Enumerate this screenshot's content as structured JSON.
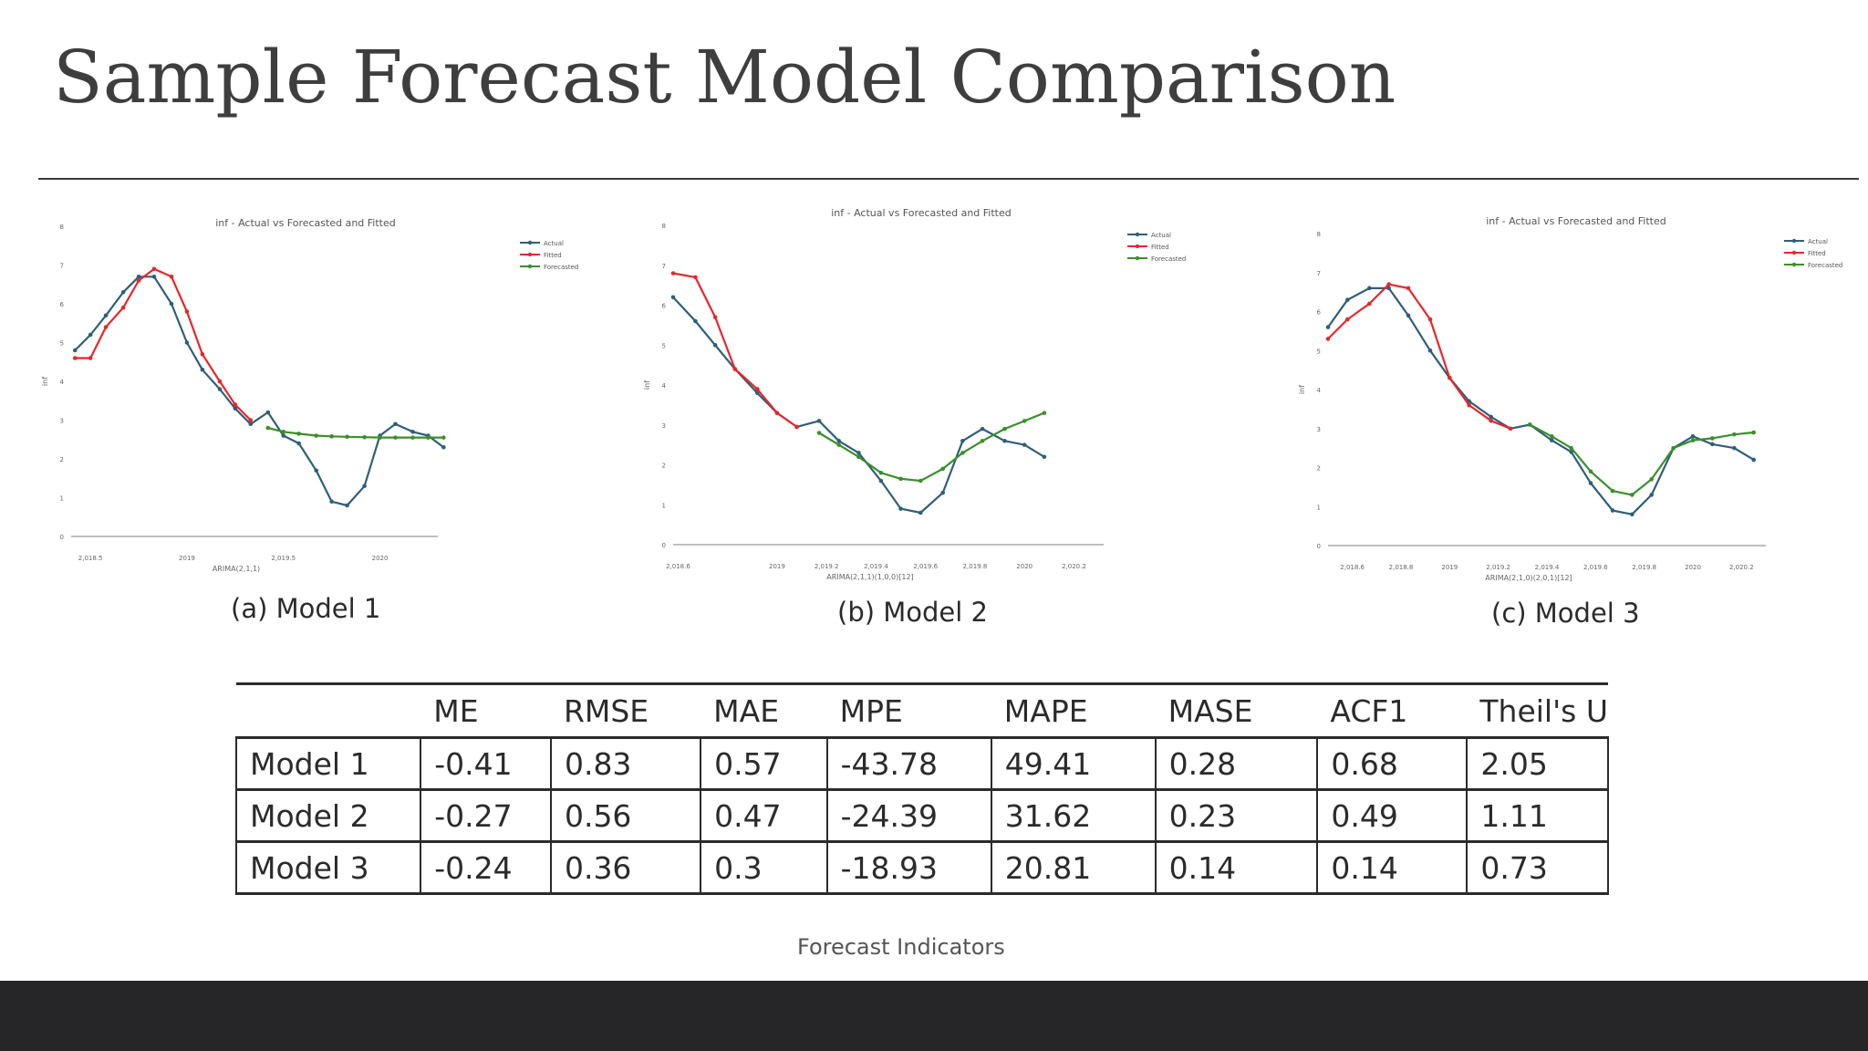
{
  "slide": {
    "title": "Sample Forecast Model Comparison",
    "table_caption": "Forecast Indicators"
  },
  "colors": {
    "actual": "#2e5f7a",
    "fitted": "#e8262b",
    "forecasted": "#3a8f2a",
    "footer": "#262628"
  },
  "chart_data": [
    {
      "type": "line",
      "title": "inf - Actual vs Forecasted and Fitted",
      "caption": "(a) Model 1",
      "xlabel": "ARIMA(2,1,1)",
      "ylabel": "inf",
      "x_ticks": [
        {
          "x": 2018.5,
          "label": "2,018.5"
        },
        {
          "x": 2019.0,
          "label": "2019"
        },
        {
          "x": 2019.5,
          "label": "2,019.5"
        },
        {
          "x": 2020.0,
          "label": "2020"
        }
      ],
      "y_ticks": [
        0,
        1,
        2,
        3,
        4,
        5,
        6,
        7,
        8
      ],
      "xlim": [
        2018.4,
        2020.3
      ],
      "ylim": [
        0,
        8
      ],
      "grid": false,
      "legend": "top-right",
      "series": [
        {
          "name": "Actual",
          "colorKey": "actual",
          "points": [
            [
              2018.42,
              4.8
            ],
            [
              2018.5,
              5.2
            ],
            [
              2018.58,
              5.7
            ],
            [
              2018.67,
              6.3
            ],
            [
              2018.75,
              6.7
            ],
            [
              2018.83,
              6.7
            ],
            [
              2018.92,
              6.0
            ],
            [
              2019.0,
              5.0
            ],
            [
              2019.08,
              4.3
            ],
            [
              2019.17,
              3.8
            ],
            [
              2019.25,
              3.3
            ],
            [
              2019.33,
              2.9
            ],
            [
              2019.42,
              3.2
            ],
            [
              2019.5,
              2.6
            ],
            [
              2019.58,
              2.4
            ],
            [
              2019.67,
              1.7
            ],
            [
              2019.75,
              0.9
            ],
            [
              2019.83,
              0.8
            ],
            [
              2019.92,
              1.3
            ],
            [
              2020.0,
              2.6
            ],
            [
              2020.08,
              2.9
            ],
            [
              2020.17,
              2.7
            ],
            [
              2020.25,
              2.6
            ],
            [
              2020.33,
              2.3
            ]
          ]
        },
        {
          "name": "Fitted",
          "colorKey": "fitted",
          "points": [
            [
              2018.42,
              4.6
            ],
            [
              2018.5,
              4.6
            ],
            [
              2018.58,
              5.4
            ],
            [
              2018.67,
              5.9
            ],
            [
              2018.75,
              6.6
            ],
            [
              2018.83,
              6.9
            ],
            [
              2018.92,
              6.7
            ],
            [
              2019.0,
              5.8
            ],
            [
              2019.08,
              4.7
            ],
            [
              2019.17,
              4.0
            ],
            [
              2019.25,
              3.4
            ],
            [
              2019.33,
              3.0
            ]
          ]
        },
        {
          "name": "Forecasted",
          "colorKey": "forecasted",
          "points": [
            [
              2019.42,
              2.8
            ],
            [
              2019.5,
              2.7
            ],
            [
              2019.58,
              2.65
            ],
            [
              2019.67,
              2.6
            ],
            [
              2019.75,
              2.58
            ],
            [
              2019.83,
              2.57
            ],
            [
              2019.92,
              2.56
            ],
            [
              2020.0,
              2.55
            ],
            [
              2020.08,
              2.55
            ],
            [
              2020.17,
              2.55
            ],
            [
              2020.25,
              2.55
            ],
            [
              2020.33,
              2.55
            ]
          ]
        }
      ]
    },
    {
      "type": "line",
      "title": "inf - Actual vs Forecasted and Fitted",
      "caption": "(b) Model 2",
      "xlabel": "ARIMA(2,1,1)(1,0,0)[12]",
      "ylabel": "inf",
      "x_ticks": [
        {
          "x": 2018.6,
          "label": "2,018.6"
        },
        {
          "x": 2019.0,
          "label": "2019"
        },
        {
          "x": 2019.2,
          "label": "2,019.2"
        },
        {
          "x": 2019.4,
          "label": "2,019.4"
        },
        {
          "x": 2019.6,
          "label": "2,019.6"
        },
        {
          "x": 2019.8,
          "label": "2,019.8"
        },
        {
          "x": 2020.0,
          "label": "2020"
        },
        {
          "x": 2020.2,
          "label": "2,020.2"
        }
      ],
      "y_ticks": [
        0,
        1,
        2,
        3,
        4,
        5,
        6,
        7,
        8
      ],
      "xlim": [
        2018.58,
        2020.32
      ],
      "ylim": [
        0,
        8
      ],
      "grid": false,
      "legend": "top-right",
      "series": [
        {
          "name": "Actual",
          "colorKey": "actual",
          "points": [
            [
              2018.58,
              6.2
            ],
            [
              2018.67,
              5.6
            ],
            [
              2018.75,
              5.0
            ],
            [
              2018.83,
              4.4
            ],
            [
              2018.92,
              3.8
            ],
            [
              2019.0,
              3.3
            ],
            [
              2019.08,
              2.95
            ],
            [
              2019.17,
              3.1
            ],
            [
              2019.25,
              2.6
            ],
            [
              2019.33,
              2.3
            ],
            [
              2019.42,
              1.6
            ],
            [
              2019.5,
              0.9
            ],
            [
              2019.58,
              0.8
            ],
            [
              2019.67,
              1.3
            ],
            [
              2019.75,
              2.6
            ],
            [
              2019.83,
              2.9
            ],
            [
              2019.92,
              2.6
            ],
            [
              2020.0,
              2.5
            ],
            [
              2020.08,
              2.2
            ]
          ]
        },
        {
          "name": "Fitted",
          "colorKey": "fitted",
          "points": [
            [
              2018.58,
              6.8
            ],
            [
              2018.67,
              6.7
            ],
            [
              2018.75,
              5.7
            ],
            [
              2018.83,
              4.4
            ],
            [
              2018.92,
              3.9
            ],
            [
              2019.0,
              3.3
            ],
            [
              2019.08,
              2.95
            ]
          ]
        },
        {
          "name": "Forecasted",
          "colorKey": "forecasted",
          "points": [
            [
              2019.17,
              2.8
            ],
            [
              2019.25,
              2.5
            ],
            [
              2019.33,
              2.2
            ],
            [
              2019.42,
              1.8
            ],
            [
              2019.5,
              1.65
            ],
            [
              2019.58,
              1.6
            ],
            [
              2019.67,
              1.9
            ],
            [
              2019.75,
              2.3
            ],
            [
              2019.83,
              2.6
            ],
            [
              2019.92,
              2.9
            ],
            [
              2020.0,
              3.1
            ],
            [
              2020.08,
              3.3
            ]
          ]
        }
      ]
    },
    {
      "type": "line",
      "title": "inf - Actual vs Forecasted and Fitted",
      "caption": "(c) Model 3",
      "xlabel": "ARIMA(2,1,0)(2,0,1)[12]",
      "ylabel": "inf",
      "x_ticks": [
        {
          "x": 2018.6,
          "label": "2,018.6"
        },
        {
          "x": 2018.8,
          "label": "2,018.8"
        },
        {
          "x": 2019.0,
          "label": "2019"
        },
        {
          "x": 2019.2,
          "label": "2,019.2"
        },
        {
          "x": 2019.4,
          "label": "2,019.4"
        },
        {
          "x": 2019.6,
          "label": "2,019.6"
        },
        {
          "x": 2019.8,
          "label": "2,019.8"
        },
        {
          "x": 2020.0,
          "label": "2020"
        },
        {
          "x": 2020.2,
          "label": "2,020.2"
        }
      ],
      "y_ticks": [
        0,
        1,
        2,
        3,
        4,
        5,
        6,
        7,
        8
      ],
      "xlim": [
        2018.5,
        2020.3
      ],
      "ylim": [
        0,
        8
      ],
      "grid": false,
      "legend": "top-right",
      "series": [
        {
          "name": "Actual",
          "colorKey": "actual",
          "points": [
            [
              2018.5,
              5.6
            ],
            [
              2018.58,
              6.3
            ],
            [
              2018.67,
              6.6
            ],
            [
              2018.75,
              6.6
            ],
            [
              2018.83,
              5.9
            ],
            [
              2018.92,
              5.0
            ],
            [
              2019.0,
              4.3
            ],
            [
              2019.08,
              3.7
            ],
            [
              2019.17,
              3.3
            ],
            [
              2019.25,
              3.0
            ],
            [
              2019.33,
              3.1
            ],
            [
              2019.42,
              2.7
            ],
            [
              2019.5,
              2.4
            ],
            [
              2019.58,
              1.6
            ],
            [
              2019.67,
              0.9
            ],
            [
              2019.75,
              0.8
            ],
            [
              2019.83,
              1.3
            ],
            [
              2019.92,
              2.5
            ],
            [
              2020.0,
              2.8
            ],
            [
              2020.08,
              2.6
            ],
            [
              2020.17,
              2.5
            ],
            [
              2020.25,
              2.2
            ]
          ]
        },
        {
          "name": "Fitted",
          "colorKey": "fitted",
          "points": [
            [
              2018.5,
              5.3
            ],
            [
              2018.58,
              5.8
            ],
            [
              2018.67,
              6.2
            ],
            [
              2018.75,
              6.7
            ],
            [
              2018.83,
              6.6
            ],
            [
              2018.92,
              5.8
            ],
            [
              2019.0,
              4.3
            ],
            [
              2019.08,
              3.6
            ],
            [
              2019.17,
              3.2
            ],
            [
              2019.25,
              3.0
            ]
          ]
        },
        {
          "name": "Forecasted",
          "colorKey": "forecasted",
          "points": [
            [
              2019.33,
              3.1
            ],
            [
              2019.42,
              2.8
            ],
            [
              2019.5,
              2.5
            ],
            [
              2019.58,
              1.9
            ],
            [
              2019.67,
              1.4
            ],
            [
              2019.75,
              1.3
            ],
            [
              2019.83,
              1.7
            ],
            [
              2019.92,
              2.5
            ],
            [
              2020.0,
              2.7
            ],
            [
              2020.08,
              2.75
            ],
            [
              2020.17,
              2.85
            ],
            [
              2020.25,
              2.9
            ]
          ]
        }
      ]
    },
    {
      "type": "table",
      "caption": "Forecast Indicators",
      "columns": [
        "",
        "ME",
        "RMSE",
        "MAE",
        "MPE",
        "MAPE",
        "MASE",
        "ACF1",
        "Theil's U"
      ],
      "rows": [
        [
          "Model 1",
          "-0.41",
          "0.83",
          "0.57",
          "-43.78",
          "49.41",
          "0.28",
          "0.68",
          "2.05"
        ],
        [
          "Model 2",
          "-0.27",
          "0.56",
          "0.47",
          "-24.39",
          "31.62",
          "0.23",
          "0.49",
          "1.11"
        ],
        [
          "Model 3",
          "-0.24",
          "0.36",
          "0.3",
          "-18.93",
          "20.81",
          "0.14",
          "0.14",
          "0.73"
        ]
      ]
    }
  ]
}
